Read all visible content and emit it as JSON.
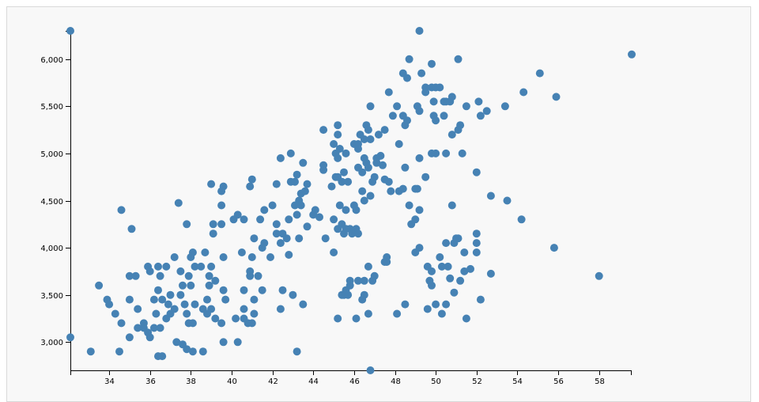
{
  "colors": {
    "panel_background": "#f8f8f8",
    "panel_border": "#d9d9d9",
    "point": "#4682b4",
    "axis": "#000000"
  },
  "chart_data": {
    "type": "scatter",
    "title": "",
    "xlabel": "",
    "ylabel": "",
    "xlim": [
      32.1,
      59.6
    ],
    "ylim": [
      2700,
      6300
    ],
    "x_ticks": [
      34,
      36,
      38,
      40,
      42,
      44,
      46,
      48,
      50,
      52,
      54,
      56,
      58
    ],
    "y_ticks": [
      3000,
      3500,
      4000,
      4500,
      5000,
      5500,
      6000
    ],
    "grid": false,
    "legend": "none",
    "points": [
      [
        32.1,
        6300
      ],
      [
        59.6,
        6050
      ],
      [
        49.2,
        6300
      ],
      [
        46.8,
        2700
      ],
      [
        32.1,
        3050
      ],
      [
        33.1,
        2900
      ],
      [
        34.5,
        2900
      ],
      [
        36.4,
        2850
      ],
      [
        36.6,
        2850
      ],
      [
        38.1,
        2900
      ],
      [
        38.6,
        2900
      ],
      [
        43.2,
        2900
      ],
      [
        35.0,
        3050
      ],
      [
        36.0,
        3050
      ],
      [
        37.3,
        3000
      ],
      [
        37.6,
        2975
      ],
      [
        37.8,
        2925
      ],
      [
        39.6,
        3000
      ],
      [
        40.3,
        3000
      ],
      [
        40.8,
        3200
      ],
      [
        41.0,
        3200
      ],
      [
        40.6,
        3250
      ],
      [
        41.1,
        3300
      ],
      [
        40.6,
        3350
      ],
      [
        39.5,
        3200
      ],
      [
        39.2,
        3250
      ],
      [
        40.2,
        3250
      ],
      [
        34.0,
        3400
      ],
      [
        33.5,
        3600
      ],
      [
        33.9,
        3450
      ],
      [
        34.3,
        3300
      ],
      [
        34.6,
        3200
      ],
      [
        35.4,
        3350
      ],
      [
        35.7,
        3150
      ],
      [
        35.9,
        3100
      ],
      [
        36.2,
        3150
      ],
      [
        36.5,
        3150
      ],
      [
        36.8,
        3250
      ],
      [
        37.0,
        3300
      ],
      [
        37.9,
        3200
      ],
      [
        38.1,
        3200
      ],
      [
        38.8,
        3300
      ],
      [
        39.0,
        3350
      ],
      [
        35.7,
        3200
      ],
      [
        35.4,
        3150
      ],
      [
        36.3,
        3300
      ],
      [
        36.2,
        3450
      ],
      [
        36.6,
        3450
      ],
      [
        37.0,
        3500
      ],
      [
        37.8,
        3300
      ],
      [
        37.7,
        3400
      ],
      [
        38.2,
        3400
      ],
      [
        37.5,
        3500
      ],
      [
        37.6,
        3600
      ],
      [
        37.2,
        3350
      ],
      [
        36.9,
        3400
      ],
      [
        36.4,
        3550
      ],
      [
        36.0,
        3750
      ],
      [
        35.9,
        3800
      ],
      [
        35.3,
        3700
      ],
      [
        35.0,
        3450
      ],
      [
        35.0,
        3700
      ],
      [
        36.4,
        3800
      ],
      [
        36.5,
        3700
      ],
      [
        36.8,
        3800
      ],
      [
        37.5,
        3750
      ],
      [
        37.9,
        3700
      ],
      [
        38.0,
        3600
      ],
      [
        38.2,
        3800
      ],
      [
        38.5,
        3800
      ],
      [
        38.9,
        3700
      ],
      [
        39.2,
        3650
      ],
      [
        39.6,
        3550
      ],
      [
        39.7,
        3450
      ],
      [
        38.9,
        3600
      ],
      [
        38.8,
        3450
      ],
      [
        38.6,
        3350
      ],
      [
        37.2,
        3900
      ],
      [
        38.1,
        3950
      ],
      [
        38.0,
        3900
      ],
      [
        39.0,
        3800
      ],
      [
        38.7,
        3950
      ],
      [
        39.6,
        3900
      ],
      [
        40.5,
        3950
      ],
      [
        40.9,
        3750
      ],
      [
        40.9,
        3700
      ],
      [
        41.0,
        3900
      ],
      [
        41.5,
        4000
      ],
      [
        41.3,
        3700
      ],
      [
        41.5,
        3550
      ],
      [
        41.1,
        3450
      ],
      [
        40.6,
        3550
      ],
      [
        41.9,
        3900
      ],
      [
        41.6,
        4050
      ],
      [
        42.2,
        4250
      ],
      [
        42.5,
        4150
      ],
      [
        42.4,
        4050
      ],
      [
        42.2,
        4150
      ],
      [
        42.7,
        4100
      ],
      [
        41.1,
        4100
      ],
      [
        40.6,
        4300
      ],
      [
        40.3,
        4350
      ],
      [
        40.1,
        4300
      ],
      [
        39.5,
        4250
      ],
      [
        39.1,
        4250
      ],
      [
        39.1,
        4150
      ],
      [
        37.8,
        4250
      ],
      [
        37.4,
        4475
      ],
      [
        34.6,
        4400
      ],
      [
        35.1,
        4200
      ],
      [
        39.0,
        4675
      ],
      [
        39.5,
        4600
      ],
      [
        39.6,
        4650
      ],
      [
        39.5,
        4450
      ],
      [
        40.9,
        4650
      ],
      [
        41.0,
        4725
      ],
      [
        41.6,
        4400
      ],
      [
        41.4,
        4300
      ],
      [
        42.0,
        4450
      ],
      [
        42.8,
        4300
      ],
      [
        42.2,
        4675
      ],
      [
        42.9,
        4700
      ],
      [
        43.1,
        4700
      ],
      [
        43.2,
        4775
      ],
      [
        43.4,
        4575
      ],
      [
        43.6,
        4600
      ],
      [
        43.7,
        4675
      ],
      [
        43.5,
        4900
      ],
      [
        42.9,
        5000
      ],
      [
        42.4,
        4950
      ],
      [
        44.1,
        4400
      ],
      [
        44.0,
        4350
      ],
      [
        44.3,
        4325
      ],
      [
        43.7,
        4225
      ],
      [
        43.3,
        4100
      ],
      [
        43.2,
        4350
      ],
      [
        43.3,
        4500
      ],
      [
        43.1,
        4450
      ],
      [
        43.4,
        4450
      ],
      [
        43.5,
        3400
      ],
      [
        43.0,
        3500
      ],
      [
        42.5,
        3550
      ],
      [
        42.4,
        3350
      ],
      [
        42.8,
        3925
      ],
      [
        44.9,
        4650
      ],
      [
        45.1,
        4750
      ],
      [
        45.2,
        4750
      ],
      [
        45.5,
        4800
      ],
      [
        45.7,
        4700
      ],
      [
        45.4,
        4700
      ],
      [
        45.3,
        4450
      ],
      [
        45.6,
        4400
      ],
      [
        46.0,
        4450
      ],
      [
        46.1,
        4400
      ],
      [
        46.1,
        4200
      ],
      [
        46.2,
        4150
      ],
      [
        45.9,
        4150
      ],
      [
        45.8,
        4200
      ],
      [
        45.5,
        4150
      ],
      [
        45.2,
        4200
      ],
      [
        45.0,
        4300
      ],
      [
        45.6,
        4200
      ],
      [
        45.4,
        4250
      ],
      [
        44.6,
        4100
      ],
      [
        45.0,
        3950
      ],
      [
        46.5,
        4500
      ],
      [
        46.4,
        4600
      ],
      [
        46.9,
        4700
      ],
      [
        46.8,
        4550
      ],
      [
        47.0,
        4750
      ],
      [
        46.4,
        4800
      ],
      [
        46.7,
        4850
      ],
      [
        46.2,
        4850
      ],
      [
        46.5,
        4950
      ],
      [
        46.6,
        4900
      ],
      [
        47.1,
        4900
      ],
      [
        47.1,
        4950
      ],
      [
        47.4,
        4875
      ],
      [
        47.5,
        4725
      ],
      [
        47.7,
        4700
      ],
      [
        47.8,
        4600
      ],
      [
        48.2,
        4600
      ],
      [
        48.4,
        4625
      ],
      [
        48.5,
        4850
      ],
      [
        48.2,
        5100
      ],
      [
        48.6,
        5350
      ],
      [
        48.4,
        5400
      ],
      [
        48.5,
        5300
      ],
      [
        48.1,
        5500
      ],
      [
        47.5,
        5250
      ],
      [
        47.2,
        5200
      ],
      [
        46.7,
        5250
      ],
      [
        46.6,
        5300
      ],
      [
        46.3,
        5200
      ],
      [
        46.8,
        5150
      ],
      [
        46.2,
        5100
      ],
      [
        46.0,
        5100
      ],
      [
        45.3,
        5050
      ],
      [
        45.0,
        5100
      ],
      [
        45.2,
        4950
      ],
      [
        45.6,
        5000
      ],
      [
        44.5,
        4875
      ],
      [
        44.5,
        4825
      ],
      [
        44.5,
        5250
      ],
      [
        45.2,
        5300
      ],
      [
        45.2,
        5200
      ],
      [
        46.5,
        5150
      ],
      [
        46.2,
        5050
      ],
      [
        45.1,
        5000
      ],
      [
        47.3,
        4975
      ],
      [
        47.9,
        5400
      ],
      [
        47.7,
        5650
      ],
      [
        46.8,
        5500
      ],
      [
        48.4,
        5850
      ],
      [
        48.7,
        6000
      ],
      [
        49.3,
        5850
      ],
      [
        49.8,
        5950
      ],
      [
        48.6,
        5800
      ],
      [
        49.1,
        5500
      ],
      [
        49.2,
        5450
      ],
      [
        49.5,
        5650
      ],
      [
        49.5,
        5700
      ],
      [
        49.8,
        5700
      ],
      [
        50.0,
        5700
      ],
      [
        50.2,
        5700
      ],
      [
        50.5,
        5550
      ],
      [
        50.7,
        5550
      ],
      [
        50.8,
        5600
      ],
      [
        51.1,
        6000
      ],
      [
        49.9,
        5550
      ],
      [
        50.0,
        5350
      ],
      [
        50.4,
        5550
      ],
      [
        49.9,
        5400
      ],
      [
        50.4,
        5400
      ],
      [
        50.8,
        5200
      ],
      [
        51.1,
        5250
      ],
      [
        51.2,
        5300
      ],
      [
        51.5,
        5500
      ],
      [
        52.1,
        5550
      ],
      [
        52.2,
        5400
      ],
      [
        52.5,
        5450
      ],
      [
        53.4,
        5500
      ],
      [
        54.3,
        5650
      ],
      [
        55.1,
        5850
      ],
      [
        55.9,
        5600
      ],
      [
        49.2,
        4950
      ],
      [
        49.5,
        4750
      ],
      [
        49.0,
        4625
      ],
      [
        49.8,
        5000
      ],
      [
        50.0,
        5000
      ],
      [
        50.5,
        5000
      ],
      [
        51.3,
        5000
      ],
      [
        50.8,
        4450
      ],
      [
        49.1,
        4625
      ],
      [
        48.7,
        4450
      ],
      [
        49.2,
        4400
      ],
      [
        49.0,
        4300
      ],
      [
        48.8,
        4250
      ],
      [
        49.2,
        4000
      ],
      [
        49.0,
        3950
      ],
      [
        49.6,
        3800
      ],
      [
        49.8,
        3750
      ],
      [
        49.8,
        3600
      ],
      [
        49.7,
        3650
      ],
      [
        50.2,
        3900
      ],
      [
        50.3,
        3800
      ],
      [
        50.5,
        4050
      ],
      [
        50.6,
        3800
      ],
      [
        50.9,
        4050
      ],
      [
        51.0,
        4100
      ],
      [
        51.1,
        4100
      ],
      [
        51.4,
        3950
      ],
      [
        52.0,
        3950
      ],
      [
        52.0,
        4050
      ],
      [
        52.0,
        4150
      ],
      [
        52.0,
        4800
      ],
      [
        52.7,
        4550
      ],
      [
        53.5,
        4500
      ],
      [
        54.2,
        4300
      ],
      [
        55.8,
        4000
      ],
      [
        58.0,
        3700
      ],
      [
        52.7,
        3725
      ],
      [
        51.7,
        3775
      ],
      [
        51.4,
        3750
      ],
      [
        51.2,
        3650
      ],
      [
        50.7,
        3675
      ],
      [
        50.9,
        3525
      ],
      [
        50.3,
        3300
      ],
      [
        50.5,
        3400
      ],
      [
        51.5,
        3250
      ],
      [
        52.2,
        3450
      ],
      [
        50.0,
        3400
      ],
      [
        49.6,
        3350
      ],
      [
        48.5,
        3400
      ],
      [
        48.1,
        3300
      ],
      [
        47.6,
        3850
      ],
      [
        47.6,
        3900
      ],
      [
        47.5,
        3850
      ],
      [
        47.0,
        3700
      ],
      [
        46.9,
        3650
      ],
      [
        46.7,
        3800
      ],
      [
        46.5,
        3650
      ],
      [
        46.4,
        3450
      ],
      [
        46.5,
        3500
      ],
      [
        46.2,
        3650
      ],
      [
        46.1,
        3250
      ],
      [
        45.5,
        3500
      ],
      [
        45.6,
        3550
      ],
      [
        45.7,
        3500
      ],
      [
        45.8,
        3600
      ],
      [
        45.8,
        3650
      ],
      [
        45.4,
        3500
      ],
      [
        45.2,
        3250
      ],
      [
        46.7,
        3300
      ]
    ]
  }
}
